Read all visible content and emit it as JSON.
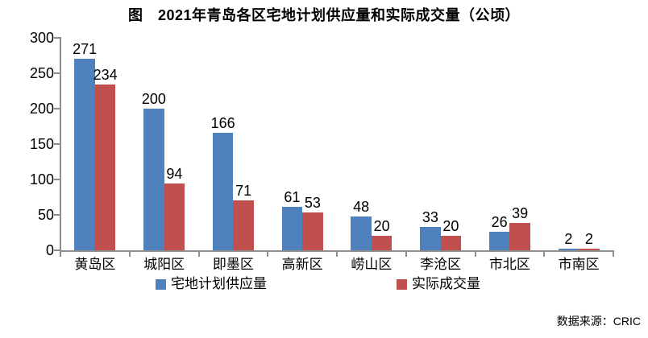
{
  "title": "图　2021年青岛各区宅地计划供应量和实际成交量（公顷）",
  "source_note": "数据来源：CRIC",
  "colors": {
    "series_planned": "#4F81BD",
    "series_actual": "#C0504D",
    "axis": "#8C8C8C",
    "text": "#000000",
    "background": "#FFFFFF"
  },
  "chart_data": {
    "type": "bar",
    "title": "图　2021年青岛各区宅地计划供应量和实际成交量（公顷）",
    "categories": [
      "黄岛区",
      "城阳区",
      "即墨区",
      "高新区",
      "崂山区",
      "李沧区",
      "市北区",
      "市南区"
    ],
    "series": [
      {
        "name": "宅地计划供应量",
        "key": "planned-supply",
        "color": "#4F81BD",
        "values": [
          271,
          200,
          166,
          61,
          48,
          33,
          26,
          2
        ]
      },
      {
        "name": "实际成交量",
        "key": "actual-transaction",
        "color": "#C0504D",
        "values": [
          234,
          94,
          71,
          53,
          20,
          20,
          39,
          2
        ]
      }
    ],
    "xlabel": "",
    "ylabel": "",
    "ylim": [
      0,
      300
    ],
    "yticks": [
      0,
      50,
      100,
      150,
      200,
      250,
      300
    ],
    "grid": false,
    "data_labels": true,
    "legend_position": "bottom",
    "source": "数据来源：CRIC"
  }
}
